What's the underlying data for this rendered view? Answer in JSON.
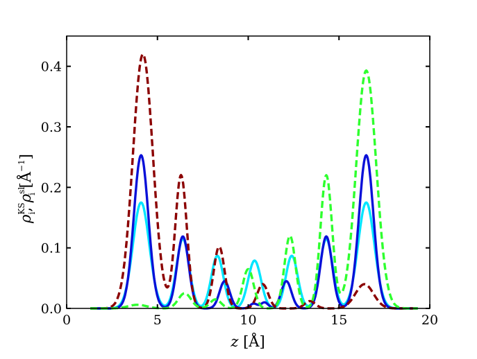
{
  "chart_data": {
    "type": "line",
    "xlabel": "z [Å]",
    "ylabel": "ρ_i^KS, ρ_i^sl [Å^−1]",
    "xlim": [
      0,
      20
    ],
    "ylim": [
      0,
      0.45
    ],
    "xticks": [
      0,
      5,
      10,
      15,
      20
    ],
    "xtick_labels": [
      "0",
      "5",
      "10",
      "15",
      "20"
    ],
    "yticks": [
      0.0,
      0.1,
      0.2,
      0.3,
      0.4
    ],
    "ytick_labels": [
      "0.0",
      "0.1",
      "0.2",
      "0.3",
      "0.4"
    ],
    "grid": false,
    "series": [
      {
        "style": "solid",
        "color": "#00e5ff",
        "peaks": [
          [
            4.1,
            0.175,
            0.45
          ],
          [
            6.4,
            0.115,
            0.35
          ],
          [
            8.3,
            0.087,
            0.33
          ],
          [
            10.35,
            0.079,
            0.35
          ],
          [
            12.4,
            0.087,
            0.33
          ],
          [
            14.3,
            0.115,
            0.35
          ],
          [
            16.5,
            0.175,
            0.45
          ]
        ]
      },
      {
        "style": "solid",
        "color": "#0a10d8",
        "peaks": [
          [
            4.1,
            0.253,
            0.4
          ],
          [
            6.4,
            0.119,
            0.32
          ],
          [
            8.7,
            0.045,
            0.28
          ],
          [
            10.3,
            0.008,
            0.2
          ],
          [
            10.9,
            0.01,
            0.2
          ],
          [
            12.1,
            0.045,
            0.28
          ],
          [
            14.3,
            0.119,
            0.32
          ],
          [
            16.5,
            0.253,
            0.4
          ]
        ]
      },
      {
        "style": "dashed",
        "color": "#8b0000",
        "peaks": [
          [
            4.2,
            0.42,
            0.55
          ],
          [
            6.3,
            0.22,
            0.32
          ],
          [
            8.4,
            0.102,
            0.3
          ],
          [
            10.8,
            0.04,
            0.3
          ],
          [
            13.4,
            0.012,
            0.3
          ],
          [
            16.4,
            0.04,
            0.5
          ]
        ]
      },
      {
        "style": "dashed",
        "color": "#2eff2e",
        "peaks": [
          [
            3.9,
            0.006,
            0.5
          ],
          [
            6.5,
            0.025,
            0.35
          ],
          [
            8.2,
            0.015,
            0.3
          ],
          [
            10.0,
            0.065,
            0.3
          ],
          [
            12.3,
            0.12,
            0.3
          ],
          [
            14.3,
            0.22,
            0.32
          ],
          [
            16.5,
            0.393,
            0.55
          ]
        ]
      }
    ]
  }
}
